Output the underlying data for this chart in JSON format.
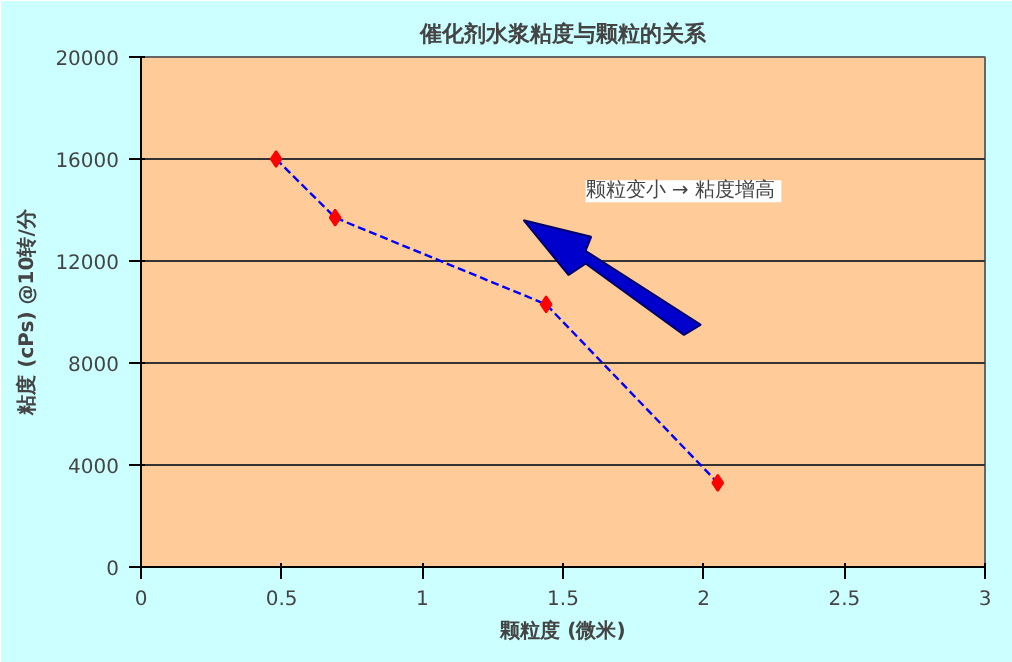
{
  "chart_data": {
    "type": "line",
    "title": "催化剂水浆粘度与颗粒的关系",
    "xlabel": "颗粒度 (微米)",
    "ylabel": "粘度 (cPs) @10转/分",
    "x": [
      0.48,
      0.69,
      1.44,
      2.05
    ],
    "series": [
      {
        "color": "#0000ff",
        "values": [
          16000,
          13700,
          10300,
          3300
        ]
      }
    ],
    "marker": "diamond",
    "line_style": "dashed",
    "grid": "y",
    "xlim": [
      0,
      3
    ],
    "xticks": [
      0,
      0.5,
      1,
      1.5,
      2,
      2.5,
      3
    ],
    "ylim": [
      0,
      20000
    ],
    "yticks": [
      0,
      4000,
      8000,
      12000,
      16000,
      20000
    ],
    "annotations": [
      "颗粒变小 →  粘度增高"
    ]
  }
}
